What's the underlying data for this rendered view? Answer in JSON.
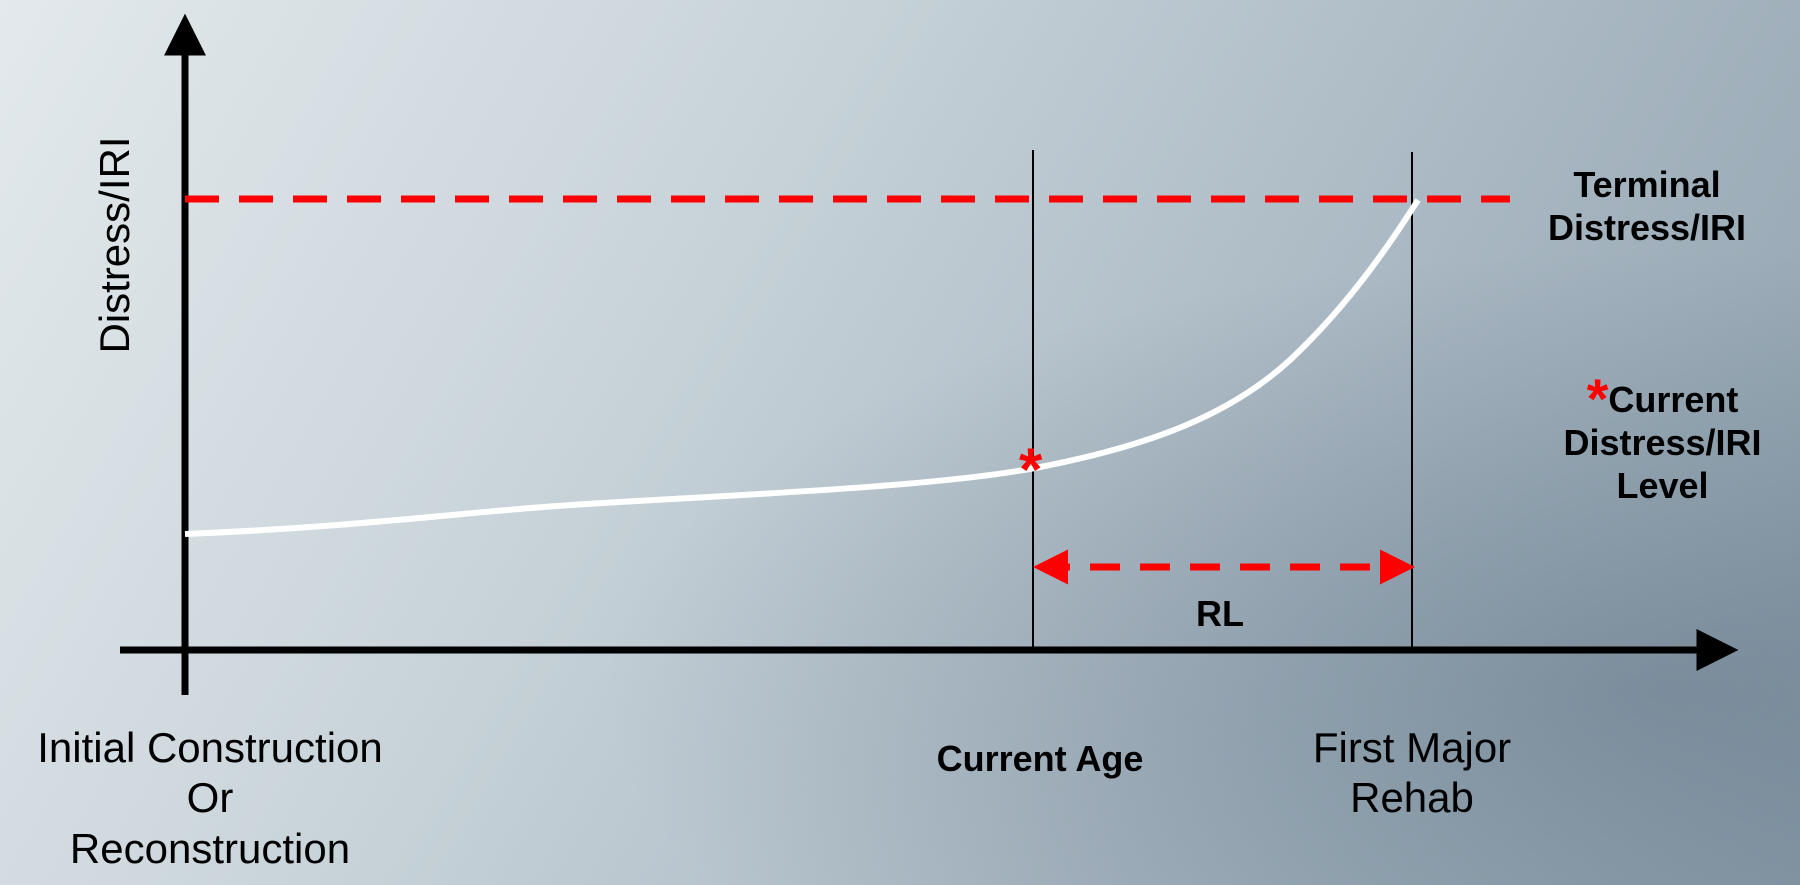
{
  "axis": {
    "y_label": "Distress/IRI"
  },
  "x_labels": {
    "initial": [
      "Initial Construction",
      "Or",
      "Reconstruction"
    ],
    "current_age": "Current Age",
    "first_major_rehab": [
      "First Major",
      "Rehab"
    ]
  },
  "terminal_label": [
    "Terminal",
    "Distress/IRI"
  ],
  "current_level_label": [
    "Current",
    "Distress/IRI",
    "Level"
  ],
  "current_level_marker": "*",
  "remaining_life_label": "RL",
  "colors": {
    "threshold": "#ff0000",
    "curve": "#ffffff",
    "axes": "#000000",
    "marker": "#ff0000"
  }
}
